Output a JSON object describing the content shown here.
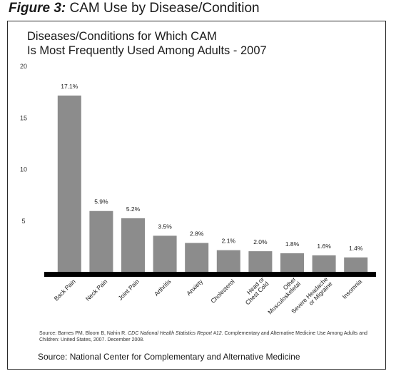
{
  "figure": {
    "title_lead": "Figure 3:",
    "title_rest": "CAM Use by Disease/Condition"
  },
  "chart_data": {
    "type": "bar",
    "title_line1": "Diseases/Conditions for Which CAM",
    "title_line2": "Is Most Frequently Used Among Adults - 2007",
    "xlabel": "",
    "ylabel": "",
    "ylim": [
      0,
      20
    ],
    "yticks": [
      "5",
      "10",
      "15",
      "20"
    ],
    "categories": [
      [
        "Back Pain"
      ],
      [
        "Neck Pain"
      ],
      [
        "Joint Pain"
      ],
      [
        "Arthritis"
      ],
      [
        "Anxiety"
      ],
      [
        "Cholesterol"
      ],
      [
        "Head or",
        "Chest Cold"
      ],
      [
        "Other",
        "Musculoskeletal"
      ],
      [
        "Severe Headache",
        "or Migraine"
      ],
      [
        "Insomnia"
      ]
    ],
    "values": [
      17.1,
      5.9,
      5.2,
      3.5,
      2.8,
      2.1,
      2.0,
      1.8,
      1.6,
      1.4
    ],
    "value_labels": [
      "17.1%",
      "5.9%",
      "5.2%",
      "3.5%",
      "2.8%",
      "2.1%",
      "2.0%",
      "1.8%",
      "1.6%",
      "1.4%"
    ],
    "grid": false,
    "legend": "none",
    "bar_color": "#8c8c8c",
    "baseline_color": "#000000"
  },
  "footnote": {
    "prefix": "Source: Barnes PM, Bloom B, Nahin R.",
    "italic": "CDC National Health Statistics Report #12.",
    "rest": "Complementary and Alternative Medicine Use Among Adults and Children: United States, 2007. December 2008."
  },
  "source": "Source: National Center for Complementary and Alternative Medicine"
}
